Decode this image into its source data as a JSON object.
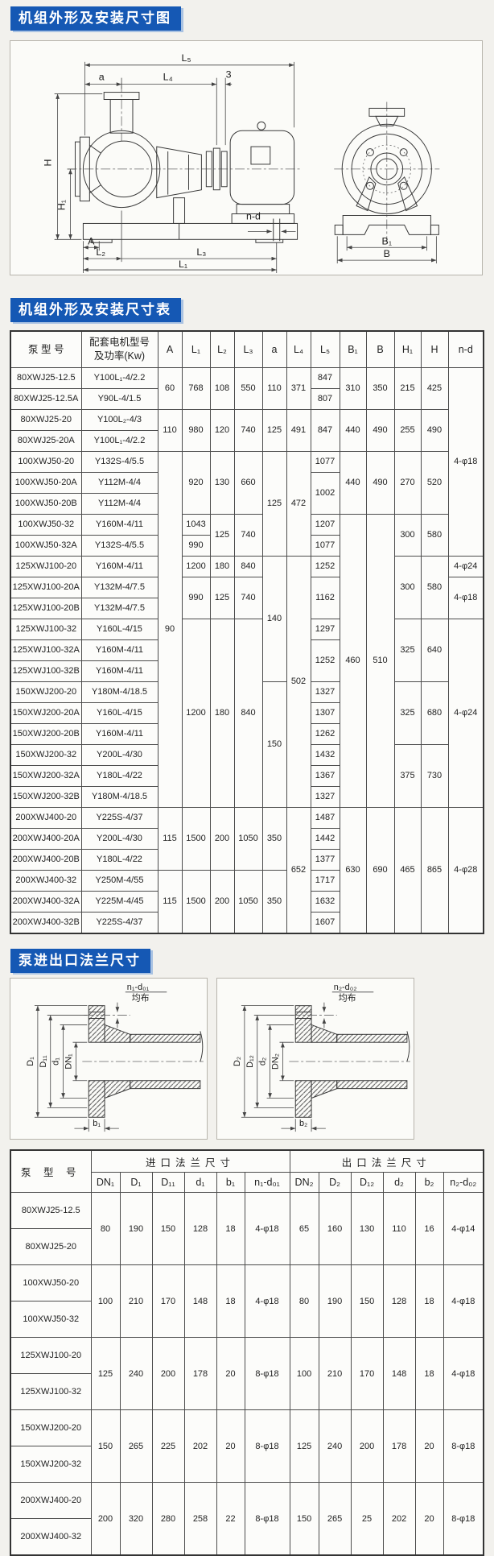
{
  "page": {
    "accent_blue": "#1558b4",
    "titles": {
      "section1": "机组外形及安装尺寸图",
      "section2": "机组外形及安装尺寸表",
      "section3": "泵进出口法兰尺寸"
    }
  },
  "assembly_diagram": {
    "labels": {
      "L5": "L₅",
      "a": "a",
      "L4": "L₄",
      "three": "3",
      "H": "H",
      "H1": "H₁",
      "A": "A",
      "L2": "L₂",
      "L3": "L₃",
      "L1": "L₁",
      "nd": "n-d",
      "B1": "B₁",
      "B": "B"
    }
  },
  "dimension_table": {
    "headers": [
      "泵 型 号",
      "配套电机型号\n及功率(Kw)",
      "A",
      "L₁",
      "L₂",
      "L₃",
      "a",
      "L₄",
      "L₅",
      "B₁",
      "B",
      "H₁",
      "H",
      "n-d"
    ],
    "rows": [
      [
        "80XWJ25-12.5",
        "Y100L₁-4/2.2",
        [
          "60",
          2
        ],
        [
          "768",
          2
        ],
        [
          "108",
          2
        ],
        [
          "550",
          2
        ],
        [
          "110",
          2
        ],
        [
          "371",
          2
        ],
        "847",
        [
          "310",
          2
        ],
        [
          "350",
          2
        ],
        [
          "215",
          2
        ],
        [
          "425",
          2
        ],
        [
          "4-φ18",
          9
        ]
      ],
      [
        "80XWJ25-12.5A",
        "Y90L-4/1.5",
        "807"
      ],
      [
        "80XWJ25-20",
        "Y100L₂-4/3",
        [
          "110",
          2
        ],
        [
          "980",
          2
        ],
        [
          "120",
          2
        ],
        [
          "740",
          2
        ],
        [
          "125",
          2
        ],
        [
          "491",
          2
        ],
        [
          "847",
          2
        ],
        [
          "440",
          2
        ],
        [
          "490",
          2
        ],
        [
          "255",
          2
        ],
        [
          "490",
          2
        ]
      ],
      [
        "80XWJ25-20A",
        "Y100L₁-4/2.2"
      ],
      [
        "100XWJ50-20",
        "Y132S-4/5.5",
        [
          "90",
          17
        ],
        [
          "920",
          3
        ],
        [
          "130",
          3
        ],
        [
          "660",
          3
        ],
        [
          "125",
          5
        ],
        [
          "472",
          5
        ],
        "1077",
        [
          "440",
          3
        ],
        [
          "490",
          3
        ],
        [
          "270",
          3
        ],
        [
          "520",
          3
        ]
      ],
      [
        "100XWJ50-20A",
        "Y112M-4/4",
        [
          "1002",
          2
        ]
      ],
      [
        "100XWJ50-20B",
        "Y112M-4/4"
      ],
      [
        "100XWJ50-32",
        "Y160M-4/11",
        "1043",
        [
          "125",
          2
        ],
        [
          "740",
          2
        ],
        "1207",
        [
          "460",
          14
        ],
        [
          "510",
          14
        ],
        [
          "300",
          2
        ],
        [
          "580",
          2
        ]
      ],
      [
        "100XWJ50-32A",
        "Y132S-4/5.5",
        "990",
        "1077"
      ],
      [
        "125XWJ100-20",
        "Y160M-4/11",
        "1200",
        "180",
        "840",
        [
          "140",
          6
        ],
        [
          "502",
          12
        ],
        "1252",
        [
          "300",
          3
        ],
        [
          "580",
          3
        ],
        "4-φ24"
      ],
      [
        "125XWJ100-20A",
        "Y132M-4/7.5",
        [
          "990",
          2
        ],
        [
          "125",
          2
        ],
        [
          "740",
          2
        ],
        [
          "1162",
          2
        ],
        [
          "4-φ18",
          2
        ]
      ],
      [
        "125XWJ100-20B",
        "Y132M-4/7.5"
      ],
      [
        "125XWJ100-32",
        "Y160L-4/15",
        [
          "1200",
          9
        ],
        [
          "180",
          9
        ],
        [
          "840",
          9
        ],
        "1297",
        [
          "325",
          3
        ],
        [
          "640",
          3
        ],
        [
          "4-φ24",
          9
        ]
      ],
      [
        "125XWJ100-32A",
        "Y160M-4/11",
        [
          "1252",
          2
        ]
      ],
      [
        "125XWJ100-32B",
        "Y160M-4/11"
      ],
      [
        "150XWJ200-20",
        "Y180M-4/18.5",
        [
          "150",
          6
        ],
        "1327",
        [
          "325",
          3
        ],
        [
          "680",
          3
        ]
      ],
      [
        "150XWJ200-20A",
        "Y160L-4/15",
        "1307"
      ],
      [
        "150XWJ200-20B",
        "Y160M-4/11",
        "1262"
      ],
      [
        "150XWJ200-32",
        "Y200L-4/30",
        "1432",
        [
          "375",
          3
        ],
        [
          "730",
          3
        ]
      ],
      [
        "150XWJ200-32A",
        "Y180L-4/22",
        "1367"
      ],
      [
        "150XWJ200-32B",
        "Y180M-4/18.5",
        "1327"
      ],
      [
        "200XWJ400-20",
        "Y225S-4/37",
        [
          "115",
          3
        ],
        [
          "1500",
          3
        ],
        [
          "200",
          3
        ],
        [
          "1050",
          3
        ],
        [
          "350",
          3
        ],
        [
          "652",
          6
        ],
        "1487",
        [
          "630",
          6
        ],
        [
          "690",
          6
        ],
        [
          "465",
          6
        ],
        [
          "865",
          6
        ],
        [
          "4-φ28",
          6
        ]
      ],
      [
        "200XWJ400-20A",
        "Y200L-4/30",
        "1442"
      ],
      [
        "200XWJ400-20B",
        "Y180L-4/22",
        "1377"
      ],
      [
        "200XWJ400-32",
        "Y250M-4/55",
        [
          "115",
          3
        ],
        [
          "1500",
          3
        ],
        [
          "200",
          3
        ],
        [
          "1050",
          3
        ],
        [
          "350",
          3
        ],
        "1717"
      ],
      [
        "200XWJ400-32A",
        "Y225M-4/45",
        "1632"
      ],
      [
        "200XWJ400-32B",
        "Y225S-4/37",
        "1607"
      ]
    ]
  },
  "flange_diagram": {
    "inlet": {
      "nd": "n₁-d₀₁",
      "junbu": "均布",
      "D": "D₁",
      "D1": "D₁₁",
      "d": "d₁",
      "DN": "DN₁",
      "b": "b₁"
    },
    "outlet": {
      "nd": "n₂-d₀₂",
      "junbu": "均布",
      "D": "D₂",
      "D1": "D₁₂",
      "d": "d₂",
      "DN": "DN₂",
      "b": "b₂"
    }
  },
  "flange_table": {
    "model_header": "泵 型 号",
    "group_inlet": "进口法兰尺寸",
    "group_outlet": "出口法兰尺寸",
    "sub_headers": [
      "DN₁",
      "D₁",
      "D₁₁",
      "d₁",
      "b₁",
      "n₁-d₀₁",
      "DN₂",
      "D₂",
      "D₁₂",
      "d₂",
      "b₂",
      "n₂-d₀₂"
    ],
    "rows": [
      [
        "80XWJ25-12.5",
        [
          "80",
          2
        ],
        [
          "190",
          2
        ],
        [
          "150",
          2
        ],
        [
          "128",
          2
        ],
        [
          "18",
          2
        ],
        [
          "4-φ18",
          2
        ],
        [
          "65",
          2
        ],
        [
          "160",
          2
        ],
        [
          "130",
          2
        ],
        [
          "110",
          2
        ],
        [
          "16",
          2
        ],
        [
          "4-φ14",
          2
        ]
      ],
      [
        "80XWJ25-20"
      ],
      [
        "100XWJ50-20",
        [
          "100",
          2
        ],
        [
          "210",
          2
        ],
        [
          "170",
          2
        ],
        [
          "148",
          2
        ],
        [
          "18",
          2
        ],
        [
          "4-φ18",
          2
        ],
        [
          "80",
          2
        ],
        [
          "190",
          2
        ],
        [
          "150",
          2
        ],
        [
          "128",
          2
        ],
        [
          "18",
          2
        ],
        [
          "4-φ18",
          2
        ]
      ],
      [
        "100XWJ50-32"
      ],
      [
        "125XWJ100-20",
        [
          "125",
          2
        ],
        [
          "240",
          2
        ],
        [
          "200",
          2
        ],
        [
          "178",
          2
        ],
        [
          "20",
          2
        ],
        [
          "8-φ18",
          2
        ],
        [
          "100",
          2
        ],
        [
          "210",
          2
        ],
        [
          "170",
          2
        ],
        [
          "148",
          2
        ],
        [
          "18",
          2
        ],
        [
          "4-φ18",
          2
        ]
      ],
      [
        "125XWJ100-32"
      ],
      [
        "150XWJ200-20",
        [
          "150",
          2
        ],
        [
          "265",
          2
        ],
        [
          "225",
          2
        ],
        [
          "202",
          2
        ],
        [
          "20",
          2
        ],
        [
          "8-φ18",
          2
        ],
        [
          "125",
          2
        ],
        [
          "240",
          2
        ],
        [
          "200",
          2
        ],
        [
          "178",
          2
        ],
        [
          "20",
          2
        ],
        [
          "8-φ18",
          2
        ]
      ],
      [
        "150XWJ200-32"
      ],
      [
        "200XWJ400-20",
        [
          "200",
          2
        ],
        [
          "320",
          2
        ],
        [
          "280",
          2
        ],
        [
          "258",
          2
        ],
        [
          "22",
          2
        ],
        [
          "8-φ18",
          2
        ],
        [
          "150",
          2
        ],
        [
          "265",
          2
        ],
        [
          "25",
          2
        ],
        [
          "202",
          2
        ],
        [
          "20",
          2
        ],
        [
          "8-φ18",
          2
        ]
      ],
      [
        "200XWJ400-32"
      ]
    ]
  }
}
